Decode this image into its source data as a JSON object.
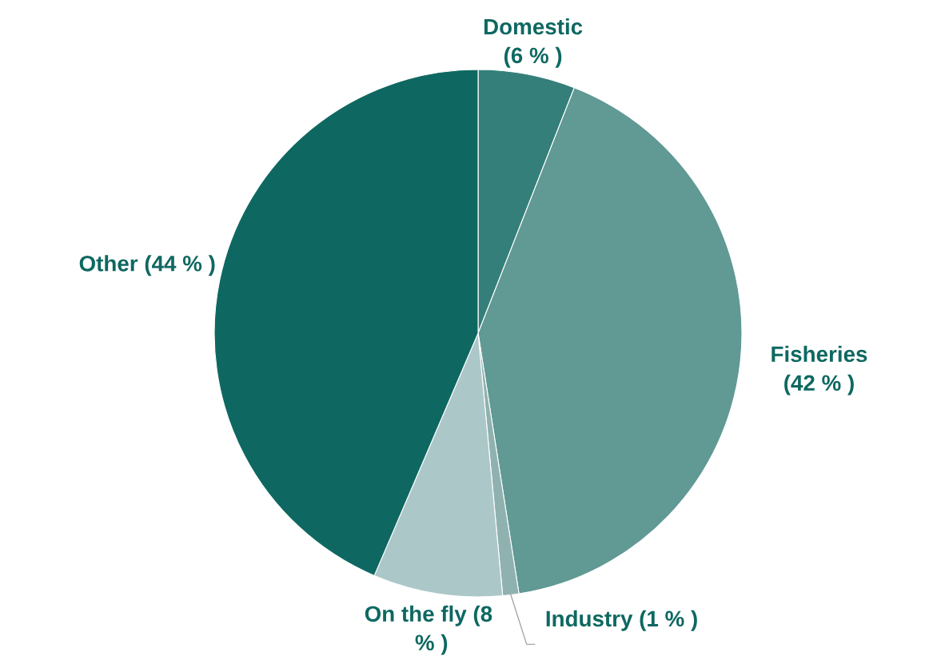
{
  "chart_data": {
    "type": "pie",
    "categories": [
      "Domestic",
      "Fisheries",
      "Industry",
      "On the fly",
      "Other"
    ],
    "values": [
      6,
      42,
      1,
      8,
      44
    ],
    "value_labels": [
      "(6 % )",
      "(42 % )",
      "(1 % )",
      "(8 % )",
      "(44 % )"
    ],
    "colors": [
      "#347f7a",
      "#619994",
      "#8fb2b0",
      "#acc7c8",
      "#0e6861"
    ],
    "legend": false
  }
}
